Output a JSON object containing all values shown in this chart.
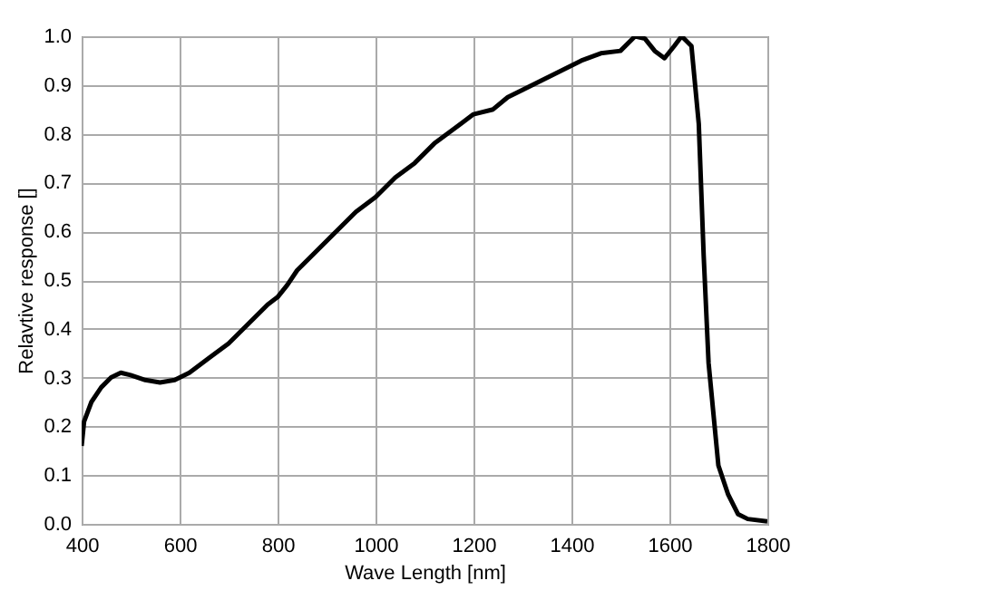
{
  "chart_data": {
    "type": "line",
    "xlabel": "Wave Length [nm]",
    "ylabel": "Relavtive response []",
    "x": [
      400,
      405,
      420,
      440,
      460,
      480,
      500,
      530,
      560,
      590,
      620,
      660,
      700,
      740,
      780,
      800,
      820,
      840,
      880,
      920,
      960,
      1000,
      1040,
      1080,
      1120,
      1160,
      1200,
      1240,
      1270,
      1300,
      1340,
      1380,
      1420,
      1460,
      1500,
      1530,
      1550,
      1570,
      1590,
      1610,
      1625,
      1645,
      1660,
      1670,
      1680,
      1700,
      1720,
      1740,
      1760,
      1800
    ],
    "series": [
      {
        "color": "#000000",
        "values": [
          0.16,
          0.21,
          0.25,
          0.28,
          0.3,
          0.31,
          0.305,
          0.295,
          0.29,
          0.295,
          0.31,
          0.34,
          0.37,
          0.41,
          0.45,
          0.465,
          0.49,
          0.52,
          0.56,
          0.6,
          0.64,
          0.67,
          0.71,
          0.74,
          0.78,
          0.81,
          0.84,
          0.85,
          0.875,
          0.89,
          0.91,
          0.93,
          0.95,
          0.965,
          0.97,
          1.0,
          0.995,
          0.97,
          0.955,
          0.98,
          1.0,
          0.98,
          0.82,
          0.55,
          0.33,
          0.12,
          0.06,
          0.02,
          0.01,
          0.005
        ]
      }
    ],
    "xlim": [
      400,
      1800
    ],
    "xticks": [
      400,
      600,
      800,
      1000,
      1200,
      1400,
      1600,
      1800
    ],
    "ylim": [
      0,
      1
    ],
    "yticks": [
      {
        "value": 0,
        "label": "0.0"
      },
      {
        "value": 0.1,
        "label": "0.1"
      },
      {
        "value": 0.2,
        "label": "0.2"
      },
      {
        "value": 0.3,
        "label": "0.3"
      },
      {
        "value": 0.4,
        "label": "0.4"
      },
      {
        "value": 0.5,
        "label": "0.5"
      },
      {
        "value": 0.6,
        "label": "0.6"
      },
      {
        "value": 0.7,
        "label": "0.7"
      },
      {
        "value": 0.8,
        "label": "0.8"
      },
      {
        "value": 0.9,
        "label": "0.9"
      },
      {
        "value": 1,
        "label": "1.0"
      }
    ],
    "grid": true,
    "marker": "none",
    "line_style": "solid"
  }
}
